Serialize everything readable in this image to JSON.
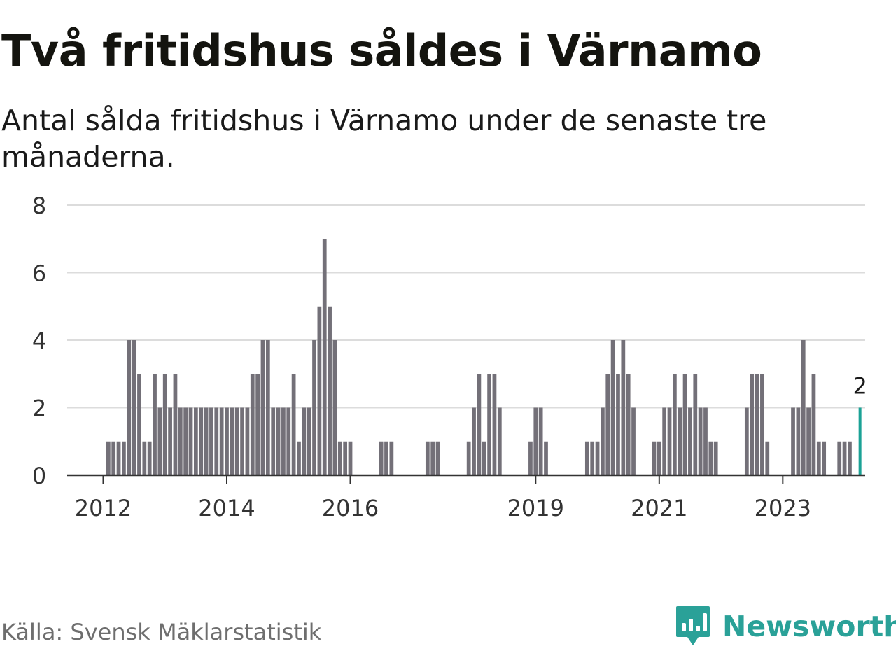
{
  "title": "Två fritidshus såldes i Värnamo",
  "subtitle": "Antal sålda fritidshus i Värnamo under de senaste tre månaderna.",
  "source": "Källa: Svensk Mäklarstatistik",
  "brand": {
    "name": "Newsworthy",
    "icon": "newsworthy-logo-icon",
    "color": "#2aa198"
  },
  "colors": {
    "bar": "#737078",
    "highlight": "#1ba296",
    "grid": "#dcdcdc",
    "axis": "#333333"
  },
  "chart_data": {
    "type": "bar",
    "title": "Två fritidshus såldes i Värnamo",
    "xlabel": "",
    "ylabel": "",
    "ylim": [
      0,
      8
    ],
    "yticks": [
      0,
      2,
      4,
      6,
      8
    ],
    "grid": true,
    "frequency": "monthly",
    "start": "2011-07",
    "x_tick_labels": [
      "2012",
      "2014",
      "2016",
      "2019",
      "2021",
      "2023"
    ],
    "values": [
      0,
      0,
      0,
      0,
      0,
      0,
      0,
      1,
      1,
      1,
      1,
      4,
      4,
      3,
      1,
      1,
      3,
      2,
      3,
      2,
      3,
      2,
      2,
      2,
      2,
      2,
      2,
      2,
      2,
      2,
      2,
      2,
      2,
      2,
      2,
      3,
      3,
      4,
      4,
      2,
      2,
      2,
      2,
      3,
      1,
      2,
      2,
      4,
      5,
      7,
      5,
      4,
      1,
      1,
      1,
      0,
      0,
      0,
      0,
      0,
      1,
      1,
      1,
      0,
      0,
      0,
      0,
      0,
      0,
      1,
      1,
      1,
      0,
      0,
      0,
      0,
      0,
      1,
      2,
      3,
      1,
      3,
      3,
      2,
      0,
      0,
      0,
      0,
      0,
      1,
      2,
      2,
      1,
      0,
      0,
      0,
      0,
      0,
      0,
      0,
      1,
      1,
      1,
      2,
      3,
      4,
      3,
      4,
      3,
      2,
      0,
      0,
      0,
      1,
      1,
      2,
      2,
      3,
      2,
      3,
      2,
      3,
      2,
      2,
      1,
      1,
      0,
      0,
      0,
      0,
      0,
      2,
      3,
      3,
      3,
      1,
      0,
      0,
      0,
      0,
      2,
      2,
      4,
      2,
      3,
      1,
      1,
      0,
      0,
      1,
      1,
      1,
      0,
      2
    ],
    "highlight": {
      "label": "2",
      "value": 2
    }
  }
}
